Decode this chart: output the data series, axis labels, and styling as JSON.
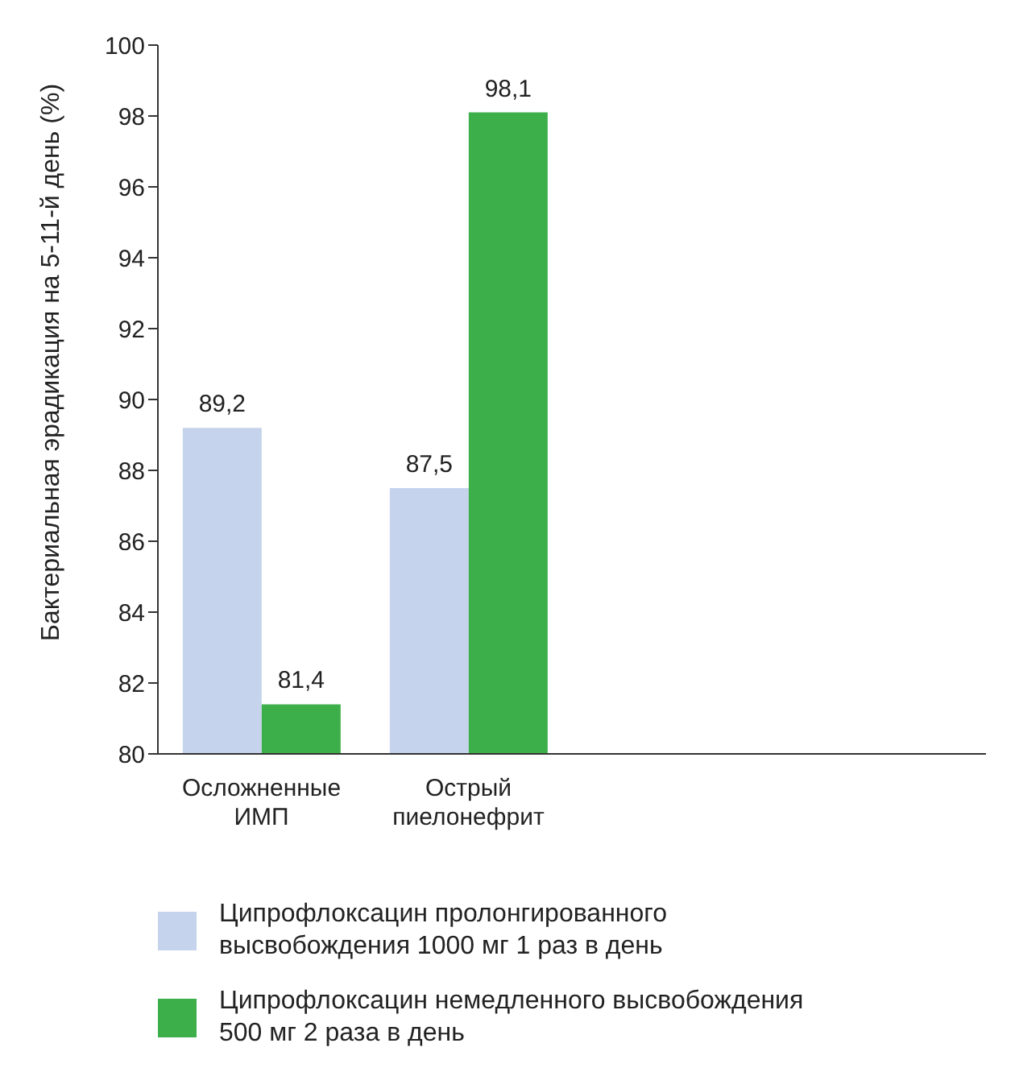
{
  "chart_data": {
    "type": "bar",
    "ylabel": "Бактериальная эрадикация на 5-11-й день (%)",
    "categories": [
      "Осложненные ИМП",
      "Острый пиелонефрит",
      null,
      null
    ],
    "series": [
      {
        "name": "Ципрофлоксацин пролонгированного высвобождения 1000 мг 1 раз в день",
        "color": "#c5d3ec",
        "values": [
          89.2,
          87.5,
          null,
          null
        ],
        "value_labels": [
          "89,2",
          "87,5",
          null,
          null
        ]
      },
      {
        "name": "Ципрофлоксацин немедленного высвобождения 500 мг 2 раза в день",
        "color": "#3daf4a",
        "values": [
          81.4,
          98.1,
          null,
          null
        ],
        "value_labels": [
          "81,4",
          "98,1",
          null,
          null
        ]
      }
    ],
    "ylim": [
      80,
      100
    ],
    "yticks": [
      80,
      82,
      84,
      86,
      88,
      90,
      92,
      94,
      96,
      98,
      100
    ],
    "grid": false,
    "legend": "bottom"
  }
}
